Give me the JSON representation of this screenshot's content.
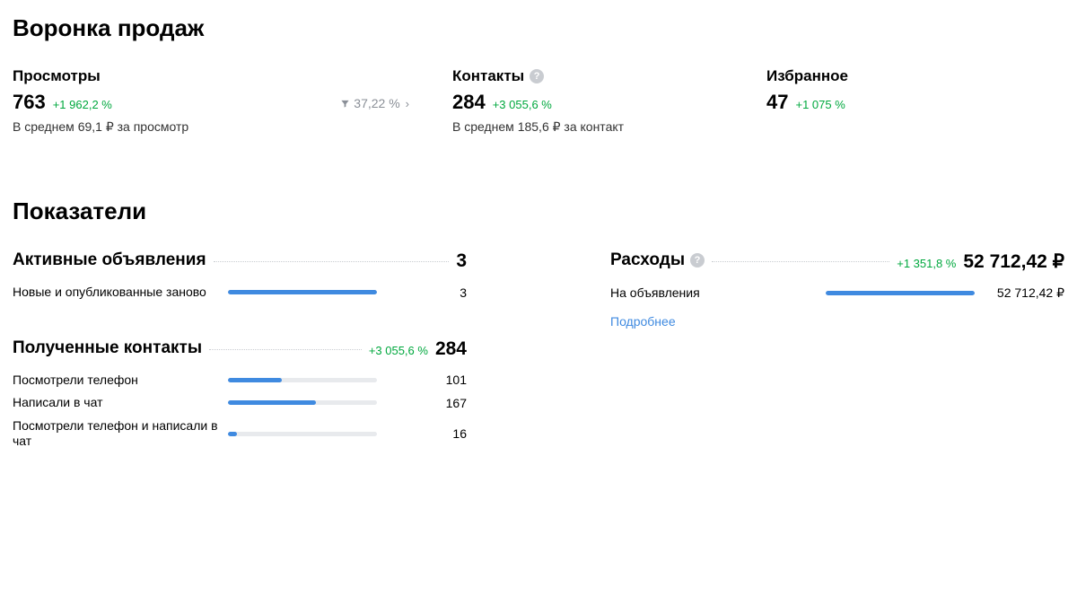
{
  "colors": {
    "text": "#000000",
    "muted": "#8a8f97",
    "green": "#00a83e",
    "bar_fill": "#3f8ae0",
    "bar_track": "#e8eaed",
    "help_bg": "#c9ccd1",
    "link": "#3f8ae0",
    "background": "#ffffff"
  },
  "funnel": {
    "title": "Воронка продаж",
    "views": {
      "label": "Просмотры",
      "value": "763",
      "delta": "+1 962,2 %",
      "avg": "В среднем 69,1 ₽ за просмотр",
      "conversion": "37,22 %"
    },
    "contacts": {
      "label": "Контакты",
      "value": "284",
      "delta": "+3 055,6 %",
      "avg": "В среднем 185,6 ₽ за контакт"
    },
    "favorites": {
      "label": "Избранное",
      "value": "47",
      "delta": "+1 075 %"
    }
  },
  "indicators": {
    "title": "Показатели",
    "active_listings": {
      "title": "Активные объявления",
      "total": "3",
      "rows": [
        {
          "label": "Новые и опубликованные заново",
          "value": "3",
          "pct": 100
        }
      ]
    },
    "received_contacts": {
      "title": "Полученные контакты",
      "delta": "+3 055,6 %",
      "total": "284",
      "rows": [
        {
          "label": "Посмотрели телефон",
          "value": "101",
          "pct": 36
        },
        {
          "label": "Написали в чат",
          "value": "167",
          "pct": 59
        },
        {
          "label": "Посмотрели телефон и написали в чат",
          "value": "16",
          "pct": 6
        }
      ]
    },
    "expenses": {
      "title": "Расходы",
      "delta": "+1 351,8 %",
      "total": "52 712,42 ₽",
      "rows": [
        {
          "label": "На объявления",
          "value": "52 712,42 ₽",
          "pct": 100
        }
      ],
      "more": "Подробнее"
    }
  }
}
